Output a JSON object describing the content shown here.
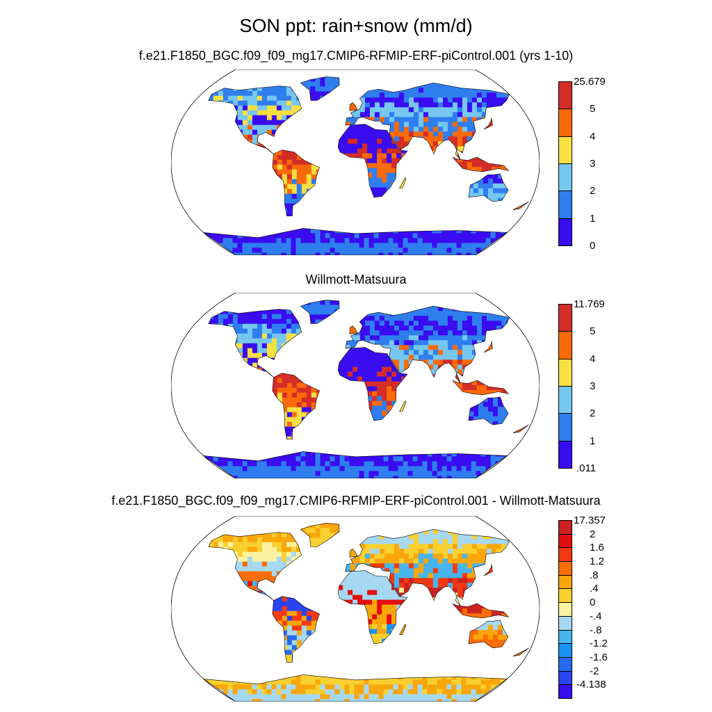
{
  "title": "SON ppt: rain+snow (mm/d)",
  "colors": {
    "p0": "#3a0cf0",
    "p1": "#2f7ef0",
    "p2": "#76c7f0",
    "p3": "#f8e040",
    "p4": "#fb6a08",
    "p5": "#d42d28",
    "d_neg4": "#3a0cf0",
    "d_neg3": "#2a44f2",
    "d_neg2": "#2668f0",
    "d_neg1": "#1a92f5",
    "d_neg0": "#46b5ef",
    "d_zero": "#a6d8f2",
    "d_pos0": "#faf2a0",
    "d_pos1": "#f8d030",
    "d_pos2": "#f9a60a",
    "d_pos3": "#fb6d09",
    "d_pos4": "#f23a10",
    "d_pos5": "#e40e0e",
    "d_pos6": "#cc2222"
  },
  "panels": [
    {
      "title": "f.e21.F1850_BGC.f09_f09_mg17.CMIP6-RFMIP-ERF-piControl.001 (yrs 1-10)",
      "colorbar": {
        "labels": [
          "25.679",
          "5",
          "4",
          "3",
          "2",
          "1",
          "0"
        ],
        "colors": [
          "#d42d28",
          "#fb6a08",
          "#f8e040",
          "#76c7f0",
          "#2f7ef0",
          "#3a0cf0"
        ]
      }
    },
    {
      "title": "Willmott-Matsuura",
      "colorbar": {
        "labels": [
          "11.769",
          "5",
          "4",
          "3",
          "2",
          "1",
          ".011"
        ],
        "colors": [
          "#d42d28",
          "#fb6a08",
          "#f8e040",
          "#76c7f0",
          "#2f7ef0",
          "#3a0cf0"
        ]
      }
    },
    {
      "title": "f.e21.F1850_BGC.f09_f09_mg17.CMIP6-RFMIP-ERF-piControl.001 - Willmott-Matsuura",
      "colorbar": {
        "labels": [
          "17.357",
          "2",
          "1.6",
          "1.2",
          ".8",
          ".4",
          "0",
          "-.4",
          "-.8",
          "-1.2",
          "-1.6",
          "-2",
          "-4.138"
        ],
        "colors": [
          "#cc2222",
          "#e40e0e",
          "#f23a10",
          "#fb6d09",
          "#f9a60a",
          "#f8d030",
          "#faf2a0",
          "#a6d8f2",
          "#46b5ef",
          "#1a92f5",
          "#2668f0",
          "#2a44f2",
          "#3a0cf0"
        ]
      }
    }
  ]
}
